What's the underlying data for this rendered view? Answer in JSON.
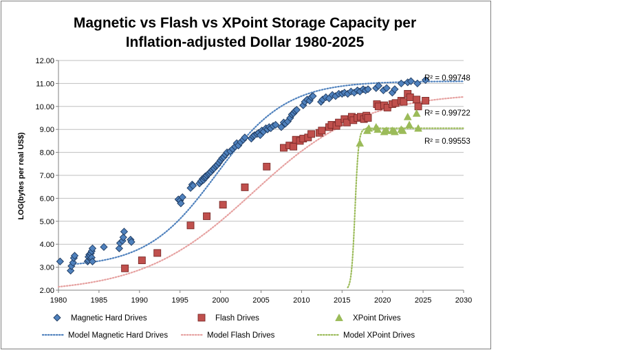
{
  "chart_data": {
    "type": "scatter",
    "title_line1": "Magnetic vs Flash vs XPoint Storage Capacity per",
    "title_line2": "Inflation-adjusted Dollar 1980-2025",
    "xlabel": "",
    "ylabel": "LOG(bytes per real US$)",
    "xlim": [
      1980,
      2030
    ],
    "ylim": [
      2.0,
      12.0
    ],
    "x_ticks": [
      "1980",
      "1985",
      "1990",
      "1995",
      "2000",
      "2005",
      "2010",
      "2015",
      "2020",
      "2025",
      "2030"
    ],
    "y_ticks": [
      "2.00",
      "3.00",
      "4.00",
      "5.00",
      "6.00",
      "7.00",
      "8.00",
      "9.00",
      "10.00",
      "11.00",
      "12.00"
    ],
    "grid": "horizontal",
    "legend_position": "bottom",
    "colors": {
      "magnetic": "#4f81bd",
      "magnetic_edge": "#1f3a5f",
      "flash": "#c0504d",
      "flash_edge": "#7a2a28",
      "xpoint": "#9bbb59",
      "model_magnetic": "#4f81bd",
      "model_flash": "#e6a1a0",
      "model_xpoint": "#9bbb59",
      "gridline": "#bfbfbf"
    },
    "series": [
      {
        "name": "Magnetic Hard Drives",
        "marker": "diamond",
        "points": [
          [
            1980.2,
            3.25
          ],
          [
            1981.5,
            2.85
          ],
          [
            1981.6,
            3.05
          ],
          [
            1981.8,
            3.2
          ],
          [
            1981.9,
            3.4
          ],
          [
            1982.0,
            3.5
          ],
          [
            1983.6,
            3.25
          ],
          [
            1983.7,
            3.3
          ],
          [
            1983.7,
            3.45
          ],
          [
            1983.8,
            3.55
          ],
          [
            1983.9,
            3.5
          ],
          [
            1984.0,
            3.6
          ],
          [
            1984.0,
            3.38
          ],
          [
            1984.1,
            3.42
          ],
          [
            1984.1,
            3.7
          ],
          [
            1984.2,
            3.25
          ],
          [
            1984.2,
            3.82
          ],
          [
            1985.6,
            3.88
          ],
          [
            1987.5,
            3.82
          ],
          [
            1987.6,
            4.05
          ],
          [
            1987.9,
            4.15
          ],
          [
            1988.0,
            4.3
          ],
          [
            1988.1,
            4.55
          ],
          [
            1988.9,
            4.2
          ],
          [
            1989.0,
            4.1
          ],
          [
            1994.8,
            5.95
          ],
          [
            1995.0,
            5.9
          ],
          [
            1995.1,
            5.78
          ],
          [
            1995.3,
            6.05
          ],
          [
            1996.3,
            6.45
          ],
          [
            1996.5,
            6.6
          ],
          [
            1996.6,
            6.55
          ],
          [
            1997.4,
            6.65
          ],
          [
            1997.6,
            6.75
          ],
          [
            1997.8,
            6.85
          ],
          [
            1997.9,
            6.8
          ],
          [
            1998.0,
            6.9
          ],
          [
            1998.1,
            6.95
          ],
          [
            1998.2,
            6.92
          ],
          [
            1998.3,
            7.0
          ],
          [
            1998.5,
            7.05
          ],
          [
            1998.6,
            7.1
          ],
          [
            1998.8,
            7.15
          ],
          [
            1999.0,
            7.25
          ],
          [
            1999.2,
            7.3
          ],
          [
            1999.4,
            7.4
          ],
          [
            1999.6,
            7.45
          ],
          [
            1999.8,
            7.55
          ],
          [
            2000.0,
            7.65
          ],
          [
            2000.2,
            7.75
          ],
          [
            2000.4,
            7.8
          ],
          [
            2000.6,
            7.9
          ],
          [
            2000.8,
            8.0
          ],
          [
            2001.2,
            8.05
          ],
          [
            2001.5,
            8.15
          ],
          [
            2001.8,
            8.25
          ],
          [
            2002.0,
            8.4
          ],
          [
            2002.2,
            8.3
          ],
          [
            2002.5,
            8.45
          ],
          [
            2002.8,
            8.55
          ],
          [
            2003.0,
            8.65
          ],
          [
            2003.8,
            8.6
          ],
          [
            2004.0,
            8.7
          ],
          [
            2004.2,
            8.75
          ],
          [
            2004.5,
            8.8
          ],
          [
            2004.7,
            8.85
          ],
          [
            2004.9,
            8.75
          ],
          [
            2005.1,
            8.95
          ],
          [
            2005.3,
            8.9
          ],
          [
            2005.6,
            9.05
          ],
          [
            2005.8,
            9.0
          ],
          [
            2006.0,
            9.1
          ],
          [
            2006.2,
            9.05
          ],
          [
            2006.5,
            9.15
          ],
          [
            2006.8,
            9.2
          ],
          [
            2007.5,
            9.1
          ],
          [
            2007.8,
            9.3
          ],
          [
            2008.0,
            9.25
          ],
          [
            2008.3,
            9.35
          ],
          [
            2008.6,
            9.5
          ],
          [
            2008.8,
            9.65
          ],
          [
            2009.0,
            9.7
          ],
          [
            2009.2,
            9.8
          ],
          [
            2009.4,
            9.85
          ],
          [
            2010.2,
            10.05
          ],
          [
            2010.4,
            10.2
          ],
          [
            2010.7,
            10.3
          ],
          [
            2011.0,
            10.25
          ],
          [
            2011.2,
            10.4
          ],
          [
            2011.4,
            10.45
          ],
          [
            2012.4,
            10.2
          ],
          [
            2012.6,
            10.3
          ],
          [
            2013.0,
            10.4
          ],
          [
            2013.4,
            10.35
          ],
          [
            2013.8,
            10.5
          ],
          [
            2014.2,
            10.45
          ],
          [
            2014.6,
            10.55
          ],
          [
            2015.0,
            10.55
          ],
          [
            2015.3,
            10.6
          ],
          [
            2015.7,
            10.55
          ],
          [
            2016.1,
            10.65
          ],
          [
            2016.5,
            10.6
          ],
          [
            2016.9,
            10.7
          ],
          [
            2017.2,
            10.65
          ],
          [
            2017.6,
            10.75
          ],
          [
            2017.9,
            10.7
          ],
          [
            2018.2,
            10.75
          ],
          [
            2019.2,
            10.8
          ],
          [
            2019.5,
            10.9
          ],
          [
            2020.1,
            10.7
          ],
          [
            2020.5,
            10.8
          ],
          [
            2021.2,
            10.6
          ],
          [
            2021.5,
            10.75
          ],
          [
            2022.3,
            11.0
          ],
          [
            2023.1,
            11.05
          ],
          [
            2023.5,
            11.1
          ],
          [
            2024.3,
            11.0
          ],
          [
            2025.3,
            11.15
          ]
        ]
      },
      {
        "name": "Flash Drives",
        "marker": "square",
        "points": [
          [
            1988.2,
            2.95
          ],
          [
            1990.3,
            3.3
          ],
          [
            1992.2,
            3.62
          ],
          [
            1996.3,
            4.82
          ],
          [
            1998.3,
            5.22
          ],
          [
            2000.3,
            5.72
          ],
          [
            2003.0,
            6.48
          ],
          [
            2005.7,
            7.38
          ],
          [
            2007.8,
            8.2
          ],
          [
            2008.5,
            8.3
          ],
          [
            2009.0,
            8.25
          ],
          [
            2009.3,
            8.55
          ],
          [
            2009.8,
            8.5
          ],
          [
            2010.2,
            8.6
          ],
          [
            2010.8,
            8.65
          ],
          [
            2011.2,
            8.8
          ],
          [
            2012.2,
            8.85
          ],
          [
            2012.5,
            8.95
          ],
          [
            2013.4,
            9.1
          ],
          [
            2013.7,
            9.2
          ],
          [
            2014.3,
            9.15
          ],
          [
            2014.6,
            9.3
          ],
          [
            2015.3,
            9.45
          ],
          [
            2015.6,
            9.3
          ],
          [
            2016.2,
            9.55
          ],
          [
            2016.4,
            9.4
          ],
          [
            2016.9,
            9.5
          ],
          [
            2017.3,
            9.55
          ],
          [
            2017.7,
            9.45
          ],
          [
            2018.0,
            9.6
          ],
          [
            2018.2,
            9.5
          ],
          [
            2019.3,
            10.1
          ],
          [
            2019.5,
            10.0
          ],
          [
            2020.2,
            10.05
          ],
          [
            2020.6,
            9.95
          ],
          [
            2021.2,
            10.1
          ],
          [
            2021.6,
            10.15
          ],
          [
            2022.3,
            10.25
          ],
          [
            2022.6,
            10.2
          ],
          [
            2023.1,
            10.55
          ],
          [
            2023.4,
            10.4
          ],
          [
            2024.2,
            10.3
          ],
          [
            2024.4,
            10.0
          ],
          [
            2025.3,
            10.25
          ]
        ]
      },
      {
        "name": "XPoint Drives",
        "marker": "triangle",
        "points": [
          [
            2017.2,
            8.4
          ],
          [
            2018.1,
            8.95
          ],
          [
            2018.3,
            9.05
          ],
          [
            2019.2,
            9.1
          ],
          [
            2019.4,
            9.0
          ],
          [
            2020.2,
            8.9
          ],
          [
            2020.5,
            8.95
          ],
          [
            2021.2,
            8.95
          ],
          [
            2021.5,
            8.9
          ],
          [
            2022.3,
            9.0
          ],
          [
            2022.5,
            8.95
          ],
          [
            2023.1,
            9.55
          ],
          [
            2023.3,
            9.2
          ],
          [
            2024.2,
            9.7
          ],
          [
            2024.4,
            9.05
          ]
        ]
      }
    ],
    "models": [
      {
        "name": "Model Magnetic Hard Drives",
        "style": "dotted",
        "r2": "R² = 0.99748"
      },
      {
        "name": "Model Flash Drives",
        "style": "dotted",
        "r2": "R² = 0.99722"
      },
      {
        "name": "Model XPoint Drives",
        "style": "dotted",
        "r2": "R² = 0.99553"
      }
    ]
  }
}
